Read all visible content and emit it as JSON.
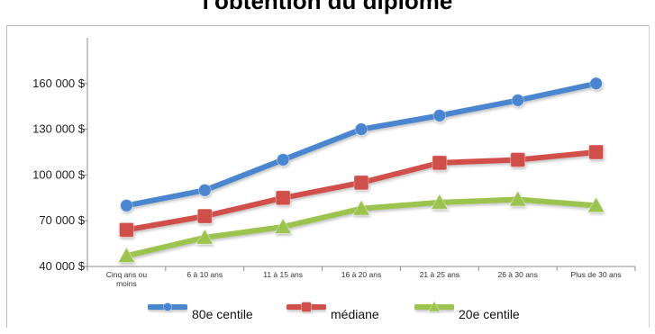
{
  "chart_data": {
    "type": "line",
    "title": "l'obtention du diplôme",
    "xlabel": "",
    "ylabel": "",
    "categories": [
      "Cinq ans ou moins",
      "6 à 10 ans",
      "11 à 15 ans",
      "16 à 20 ans",
      "21 à 25 ans",
      "26 à 30 ans",
      "Plus de 30 ans"
    ],
    "ylim": [
      40000,
      190000
    ],
    "yticks": [
      "40 000 $",
      "70 000 $",
      "100 000 $",
      "130 000 $",
      "160 000 $"
    ],
    "ytick_values": [
      40000,
      70000,
      100000,
      130000,
      160000
    ],
    "grid": false,
    "legend_position": "bottom",
    "series": [
      {
        "name": "80e centile",
        "color": "#4a86cf",
        "marker": "diamond",
        "values": [
          80000,
          90000,
          110000,
          130000,
          139000,
          149000,
          160000
        ]
      },
      {
        "name": "médiane",
        "color": "#d1504b",
        "marker": "square",
        "values": [
          64000,
          73000,
          85000,
          95000,
          108000,
          110000,
          115000
        ]
      },
      {
        "name": "20e centile",
        "color": "#9bc34d",
        "marker": "triangle",
        "values": [
          47000,
          59000,
          66000,
          78000,
          82000,
          84000,
          80000
        ]
      }
    ]
  }
}
